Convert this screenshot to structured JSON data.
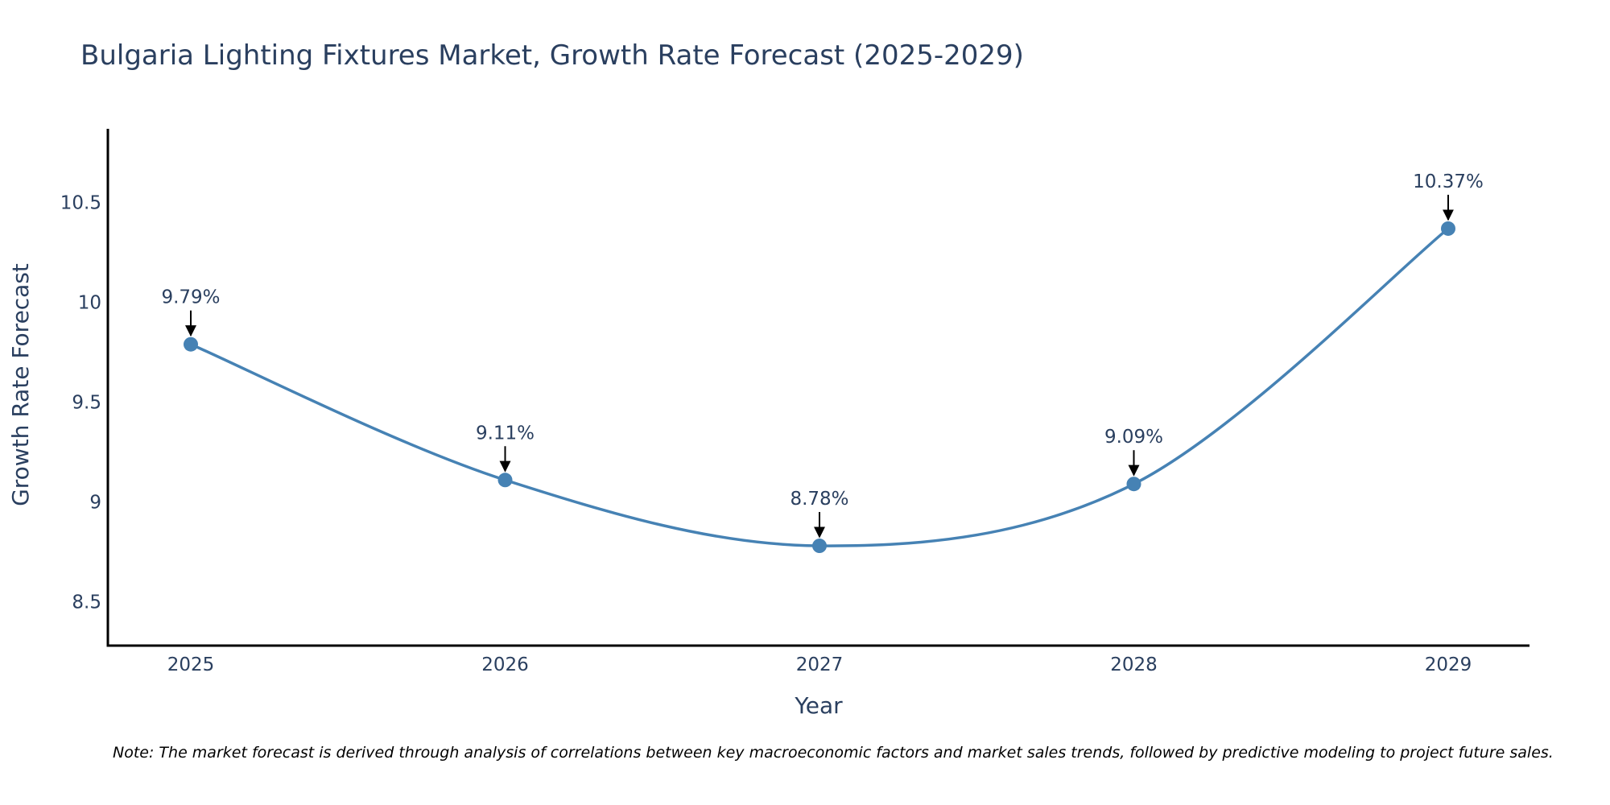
{
  "chart_data": {
    "type": "line",
    "title": "Bulgaria Lighting Fixtures Market, Growth Rate Forecast (2025-2029)",
    "xlabel": "Year",
    "ylabel": "Growth Rate Forecast",
    "categories": [
      "2025",
      "2026",
      "2027",
      "2028",
      "2029"
    ],
    "values": [
      9.79,
      9.11,
      8.78,
      9.09,
      10.37
    ],
    "data_labels": [
      "9.79%",
      "9.11%",
      "8.78%",
      "9.09%",
      "10.37%"
    ],
    "ylim": [
      8.28,
      10.87
    ],
    "yticks": [
      8.5,
      9,
      9.5,
      10,
      10.5
    ],
    "ytick_labels": [
      "8.5",
      "9",
      "9.5",
      "10",
      "10.5"
    ],
    "line_shape": "spline",
    "grid": false,
    "legend": false,
    "colors": {
      "line": "#4682b4",
      "marker": "#4682b4",
      "arrow": "#000000",
      "axis": "#000000",
      "text": "#2a3f5f"
    }
  },
  "note": "Note: The market forecast is derived through analysis of correlations between key macroeconomic factors and market sales trends, followed by predictive modeling to project future sales."
}
